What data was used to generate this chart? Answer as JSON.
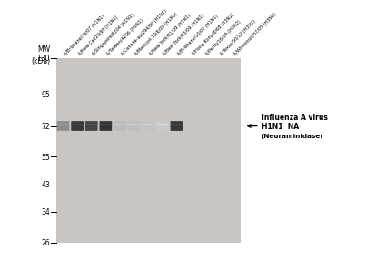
{
  "bg_color": "#ffffff",
  "gel_bg": "#c8c5c2",
  "white_gap": "#e8e5e2",
  "mw_labels": [
    "130",
    "95",
    "72",
    "55",
    "43",
    "34",
    "26"
  ],
  "mw_values": [
    130,
    95,
    72,
    55,
    43,
    34,
    26
  ],
  "lane_labels": [
    "A/Brisbane/59/07 (H1N1)",
    "A/New Cal/20/99 (H1N1)",
    "A/Singapore/6304 (H1N1)",
    "A/Taiwan/4206 (H1N1)",
    "A/Canada-ab/294/09 (H1N1)",
    "A/Mexico4 10/6/09 (H1N1)",
    "A/New York/01/09 (H1N1)",
    "A/New York/03/09 (H1N1)",
    "A/Brisbane/10/07 (H1N1)",
    "A/Hong Kong/8/68 (H3N2)",
    "A/Perth/16/09 (H3N2)",
    "A/Texas/50/12 (H3N2)",
    "A/Wisconsin/67/05 (H3N2)"
  ],
  "num_lanes": 13,
  "band_72_intensities": [
    0.5,
    0.88,
    0.82,
    0.9,
    0.3,
    0.28,
    0.26,
    0.24,
    0.88,
    0.0,
    0.0,
    0.0,
    0.0
  ],
  "groups": [
    [
      0,
      1,
      2,
      3
    ],
    [
      4,
      5,
      6,
      7,
      8
    ],
    [
      9,
      10,
      11,
      12
    ]
  ],
  "annotation_lines": [
    "Influenza A virus",
    "H1N1  NA",
    "(Neuraminidase)"
  ],
  "annotation_bold": [
    true,
    true,
    true
  ],
  "arrow_kda": 72
}
